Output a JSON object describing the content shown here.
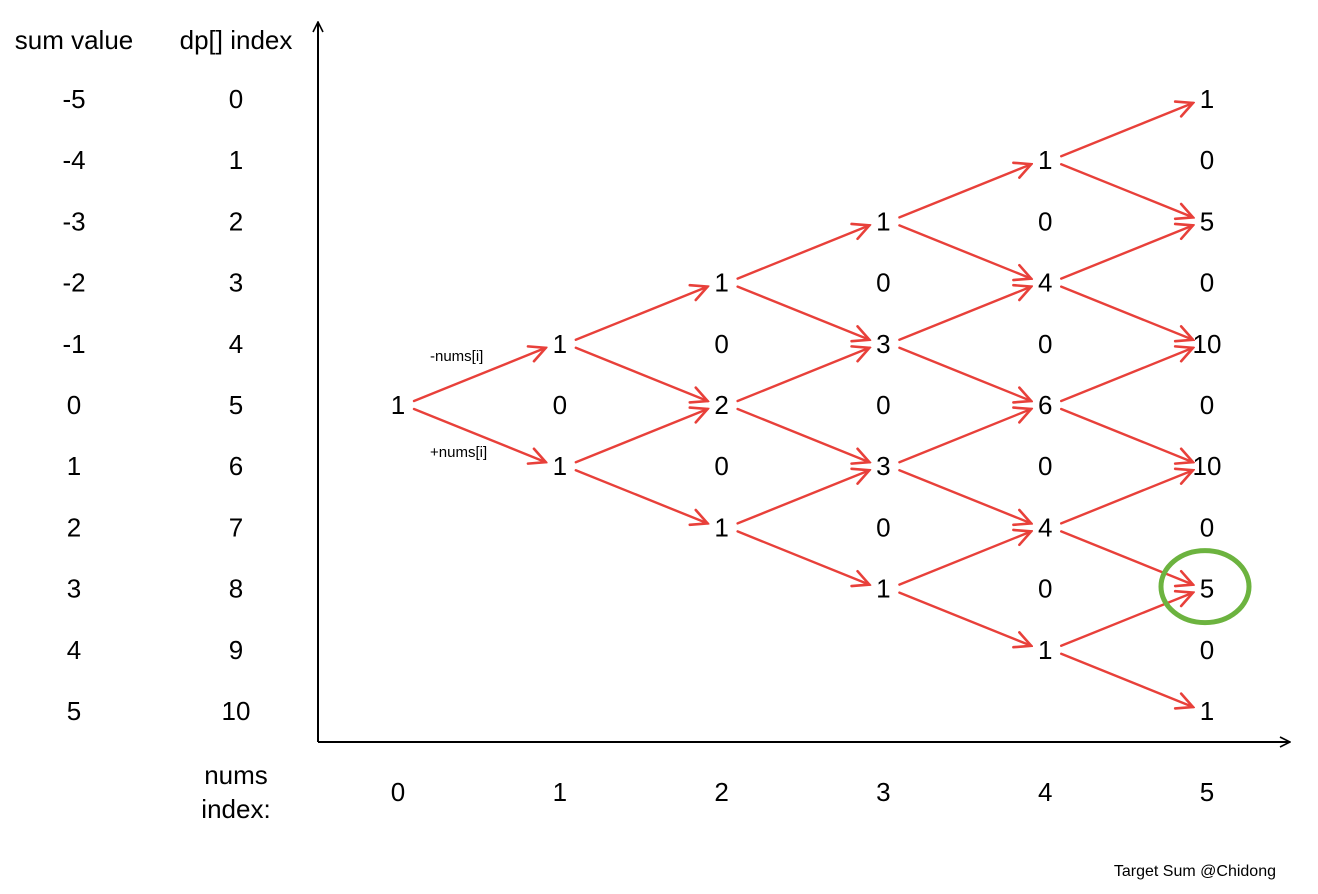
{
  "header": {
    "sum_value_label": "sum value",
    "dp_index_label": "dp[] index"
  },
  "sum_values": [
    "-5",
    "-4",
    "-3",
    "-2",
    "-1",
    "0",
    "1",
    "2",
    "3",
    "4",
    "5"
  ],
  "dp_indices": [
    "0",
    "1",
    "2",
    "3",
    "4",
    "5",
    "6",
    "7",
    "8",
    "9",
    "10"
  ],
  "nums_index_label": [
    "nums",
    "index:"
  ],
  "nums_indices": [
    "0",
    "1",
    "2",
    "3",
    "4",
    "5"
  ],
  "branch_labels": {
    "minus": "-nums[i]",
    "plus": "+nums[i]"
  },
  "columns": [
    {
      "nums_index": 0,
      "values": [
        {
          "dp": 5,
          "v": "1"
        }
      ]
    },
    {
      "nums_index": 1,
      "values": [
        {
          "dp": 4,
          "v": "1"
        },
        {
          "dp": 5,
          "v": "0"
        },
        {
          "dp": 6,
          "v": "1"
        }
      ]
    },
    {
      "nums_index": 2,
      "values": [
        {
          "dp": 3,
          "v": "1"
        },
        {
          "dp": 4,
          "v": "0"
        },
        {
          "dp": 5,
          "v": "2"
        },
        {
          "dp": 6,
          "v": "0"
        },
        {
          "dp": 7,
          "v": "1"
        }
      ]
    },
    {
      "nums_index": 3,
      "values": [
        {
          "dp": 2,
          "v": "1"
        },
        {
          "dp": 3,
          "v": "0"
        },
        {
          "dp": 4,
          "v": "3"
        },
        {
          "dp": 5,
          "v": "0"
        },
        {
          "dp": 6,
          "v": "3"
        },
        {
          "dp": 7,
          "v": "0"
        },
        {
          "dp": 8,
          "v": "1"
        }
      ]
    },
    {
      "nums_index": 4,
      "values": [
        {
          "dp": 1,
          "v": "1"
        },
        {
          "dp": 2,
          "v": "0"
        },
        {
          "dp": 3,
          "v": "4"
        },
        {
          "dp": 4,
          "v": "0"
        },
        {
          "dp": 5,
          "v": "6"
        },
        {
          "dp": 6,
          "v": "0"
        },
        {
          "dp": 7,
          "v": "4"
        },
        {
          "dp": 8,
          "v": "0"
        },
        {
          "dp": 9,
          "v": "1"
        }
      ]
    },
    {
      "nums_index": 5,
      "values": [
        {
          "dp": 0,
          "v": "1"
        },
        {
          "dp": 1,
          "v": "0"
        },
        {
          "dp": 2,
          "v": "5"
        },
        {
          "dp": 3,
          "v": "0"
        },
        {
          "dp": 4,
          "v": "10"
        },
        {
          "dp": 5,
          "v": "0"
        },
        {
          "dp": 6,
          "v": "10"
        },
        {
          "dp": 7,
          "v": "0"
        },
        {
          "dp": 8,
          "v": "5"
        },
        {
          "dp": 9,
          "v": "0"
        },
        {
          "dp": 10,
          "v": "1"
        }
      ]
    }
  ],
  "highlight": {
    "nums_index": 5,
    "dp": 8
  },
  "colors": {
    "arrow": "#e8403a",
    "highlight": "#6cb33f",
    "text": "#000000",
    "axis": "#000000"
  },
  "credit": "Target Sum @Chidong"
}
